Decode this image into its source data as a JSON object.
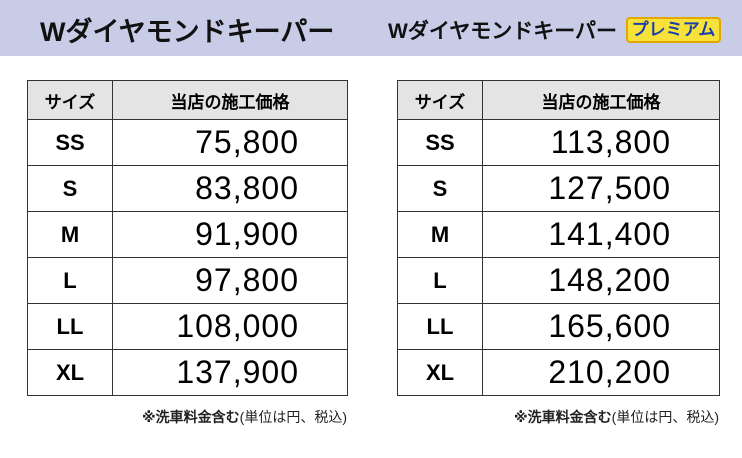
{
  "tables": [
    {
      "title": "Wダイヤモンドキーパー",
      "header": [
        "サイズ",
        "当店の施工価格"
      ],
      "rows": [
        [
          "SS",
          "75,800"
        ],
        [
          "S",
          "83,800"
        ],
        [
          "M",
          "91,900"
        ],
        [
          "L",
          "97,800"
        ],
        [
          "LL",
          "108,000"
        ],
        [
          "XL",
          "137,900"
        ]
      ],
      "note_bold": "※洗車料金含む",
      "note_rest": "(単位は円、税込)"
    },
    {
      "title": "Wダイヤモンドキーパー",
      "badge": "プレミアム",
      "header": [
        "サイズ",
        "当店の施工価格"
      ],
      "rows": [
        [
          "SS",
          "113,800"
        ],
        [
          "S",
          "127,500"
        ],
        [
          "M",
          "141,400"
        ],
        [
          "L",
          "148,200"
        ],
        [
          "LL",
          "165,600"
        ],
        [
          "XL",
          "210,200"
        ]
      ],
      "note_bold": "※洗車料金含む",
      "note_rest": "(単位は円、税込)"
    }
  ]
}
